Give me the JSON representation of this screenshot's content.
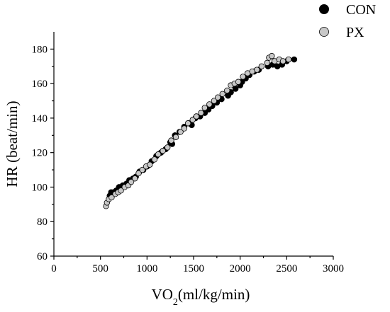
{
  "chart_data": {
    "type": "scatter",
    "title": "",
    "xlabel": "VO",
    "xlabel_sub": "2",
    "xlabel_suffix": "(ml/kg/min)",
    "ylabel": "HR (beat/min)",
    "xlim": [
      0,
      3000
    ],
    "ylim": [
      60,
      190
    ],
    "xticks": [
      0,
      500,
      1000,
      1500,
      2000,
      2500,
      3000
    ],
    "yticks": [
      60,
      80,
      100,
      120,
      140,
      160,
      180
    ],
    "grid": false,
    "legend_position": "top-right",
    "series": [
      {
        "name": "CON",
        "color": "#000000",
        "marker": "filled-circle",
        "points": [
          [
            600,
            95
          ],
          [
            615,
            97
          ],
          [
            640,
            97
          ],
          [
            670,
            98
          ],
          [
            700,
            100
          ],
          [
            740,
            101
          ],
          [
            780,
            102
          ],
          [
            810,
            104
          ],
          [
            850,
            105
          ],
          [
            880,
            106
          ],
          [
            920,
            109
          ],
          [
            960,
            110
          ],
          [
            1000,
            112
          ],
          [
            1050,
            115
          ],
          [
            1100,
            118
          ],
          [
            1150,
            120
          ],
          [
            1200,
            122
          ],
          [
            1250,
            126
          ],
          [
            1270,
            125
          ],
          [
            1300,
            130
          ],
          [
            1350,
            132
          ],
          [
            1400,
            135
          ],
          [
            1450,
            137
          ],
          [
            1480,
            136
          ],
          [
            1520,
            140
          ],
          [
            1570,
            141
          ],
          [
            1620,
            143
          ],
          [
            1660,
            145
          ],
          [
            1700,
            147
          ],
          [
            1750,
            149
          ],
          [
            1800,
            151
          ],
          [
            1870,
            153
          ],
          [
            1900,
            155
          ],
          [
            1950,
            157
          ],
          [
            2000,
            159
          ],
          [
            2020,
            161
          ],
          [
            2060,
            163
          ],
          [
            2100,
            165
          ],
          [
            2150,
            167
          ],
          [
            2200,
            168
          ],
          [
            2300,
            170
          ],
          [
            2350,
            171
          ],
          [
            2400,
            170
          ],
          [
            2450,
            171
          ],
          [
            2500,
            173
          ],
          [
            2580,
            174
          ]
        ]
      },
      {
        "name": "PX",
        "color": "#c8c8c8",
        "marker": "open-circle",
        "points": [
          [
            560,
            89
          ],
          [
            570,
            91
          ],
          [
            590,
            93
          ],
          [
            620,
            94
          ],
          [
            660,
            96
          ],
          [
            690,
            97
          ],
          [
            720,
            98
          ],
          [
            760,
            100
          ],
          [
            800,
            101
          ],
          [
            830,
            103
          ],
          [
            870,
            105
          ],
          [
            910,
            108
          ],
          [
            950,
            110
          ],
          [
            990,
            112
          ],
          [
            1030,
            113
          ],
          [
            1080,
            116
          ],
          [
            1120,
            119
          ],
          [
            1170,
            121
          ],
          [
            1220,
            123
          ],
          [
            1260,
            127
          ],
          [
            1310,
            129
          ],
          [
            1360,
            132
          ],
          [
            1400,
            134
          ],
          [
            1440,
            137
          ],
          [
            1490,
            139
          ],
          [
            1530,
            141
          ],
          [
            1580,
            143
          ],
          [
            1620,
            146
          ],
          [
            1670,
            148
          ],
          [
            1720,
            150
          ],
          [
            1760,
            152
          ],
          [
            1810,
            154
          ],
          [
            1860,
            156
          ],
          [
            1900,
            159
          ],
          [
            1940,
            160
          ],
          [
            1980,
            161
          ],
          [
            2030,
            164
          ],
          [
            2080,
            166
          ],
          [
            2130,
            167
          ],
          [
            2180,
            168
          ],
          [
            2230,
            170
          ],
          [
            2290,
            172
          ],
          [
            2310,
            175
          ],
          [
            2340,
            176
          ],
          [
            2370,
            173
          ],
          [
            2420,
            174
          ],
          [
            2460,
            173
          ],
          [
            2520,
            174
          ]
        ]
      }
    ]
  }
}
